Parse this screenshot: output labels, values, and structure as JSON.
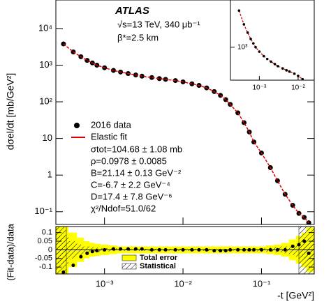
{
  "chart_data": [
    {
      "type": "scatter",
      "title": "ATLAS",
      "subtitle": "√s=13 TeV, 340 μb⁻¹",
      "annotation": "β*=2.5 km",
      "ylabel": "dσel/dt [mb/GeV²]",
      "log_x": true,
      "log_y": true,
      "xlim": [
        0.00024,
        0.47
      ],
      "ylim": [
        0.045,
        60000
      ],
      "yticks": [
        {
          "value": 0.1,
          "label": "10⁻¹"
        },
        {
          "value": 1,
          "label": "1"
        },
        {
          "value": 10,
          "label": "10"
        },
        {
          "value": 100,
          "label": "10²"
        },
        {
          "value": 1000,
          "label": "10³"
        },
        {
          "value": 10000,
          "label": "10⁴"
        }
      ],
      "x": [
        0.0003,
        0.0004,
        0.0005,
        0.0006,
        0.0007,
        0.0008,
        0.001,
        0.0013,
        0.0016,
        0.002,
        0.0025,
        0.003,
        0.004,
        0.005,
        0.006,
        0.008,
        0.01,
        0.013,
        0.016,
        0.02,
        0.025,
        0.03,
        0.035,
        0.04,
        0.05,
        0.06,
        0.07,
        0.08,
        0.1,
        0.13,
        0.16,
        0.2,
        0.25,
        0.3,
        0.35,
        0.4
      ],
      "series": [
        {
          "name": "2016 data",
          "color": "#000000",
          "values": [
            3800,
            2300,
            1700,
            1350,
            1150,
            1000,
            850,
            720,
            650,
            590,
            540,
            500,
            460,
            430,
            410,
            380,
            350,
            310,
            280,
            240,
            190,
            150,
            115,
            85,
            50,
            27,
            15,
            8,
            4,
            1.6,
            0.7,
            0.3,
            0.15,
            0.09,
            0.07,
            0.05
          ]
        },
        {
          "name": "Elastic fit",
          "color": "#e00000",
          "values": [
            3800,
            2300,
            1700,
            1350,
            1150,
            1000,
            850,
            720,
            650,
            590,
            540,
            500,
            460,
            430,
            410,
            380,
            350,
            310,
            280,
            240,
            190,
            150,
            115,
            85,
            50,
            27,
            15,
            8,
            4,
            1.6,
            0.7,
            0.3,
            0.15,
            0.09,
            0.07,
            0.05
          ]
        }
      ],
      "fit_parameters": [
        "σtot=104.68 ± 1.08 mb",
        "ρ=0.0978 ± 0.0085",
        "B=21.14 ± 0.13 GeV⁻²",
        "C=-6.7 ± 2.2 GeV⁻⁴",
        "D=17.4 ± 7.8 GeV⁻⁶",
        "χ²/Ndof=51.0/62"
      ]
    },
    {
      "type": "inset",
      "log_x": true,
      "log_y": true,
      "xlim": [
        0.00018,
        0.026
      ],
      "ylim": [
        300,
        5600
      ],
      "xticks": [
        {
          "value": 0.001,
          "label": "10⁻³"
        },
        {
          "value": 0.01,
          "label": "10⁻²"
        }
      ],
      "yticks": [
        {
          "value": 1000,
          "label": "10³"
        }
      ]
    },
    {
      "type": "ratio",
      "ylabel": "(Fit-data)/data",
      "xlabel": "-t [GeV²]",
      "log_x": true,
      "xlim": [
        0.00024,
        0.47
      ],
      "ylim": [
        -0.14,
        0.135
      ],
      "xticks": [
        {
          "value": 0.001,
          "label": "10⁻³"
        },
        {
          "value": 0.01,
          "label": "10⁻²"
        },
        {
          "value": 0.1,
          "label": "10⁻¹"
        }
      ],
      "yticks": [
        -0.1,
        -0.05,
        0,
        0.05,
        0.1
      ],
      "x": [
        0.0003,
        0.0004,
        0.0005,
        0.0006,
        0.0007,
        0.0008,
        0.001,
        0.0013,
        0.0016,
        0.002,
        0.0025,
        0.003,
        0.004,
        0.005,
        0.006,
        0.008,
        0.01,
        0.013,
        0.016,
        0.02,
        0.025,
        0.03,
        0.035,
        0.04,
        0.05,
        0.06,
        0.07,
        0.08,
        0.1,
        0.13,
        0.16,
        0.2,
        0.25,
        0.3,
        0.35,
        0.4
      ],
      "values": [
        -0.13,
        -0.09,
        -0.04,
        -0.02,
        -0.01,
        -0.005,
        0,
        0.005,
        0.005,
        0.005,
        0.005,
        0.005,
        0,
        0,
        0,
        0,
        0,
        0,
        0,
        0,
        -0.005,
        -0.005,
        -0.005,
        0,
        0,
        0,
        0,
        0,
        0,
        0,
        0,
        0,
        0.02,
        0.03,
        0.05,
        -0.02
      ],
      "bands": [
        {
          "name": "Total error",
          "color": "#ffff00",
          "values": [
            0.15,
            0.1,
            0.07,
            0.05,
            0.04,
            0.035,
            0.03,
            0.025,
            0.02,
            0.02,
            0.02,
            0.02,
            0.02,
            0.02,
            0.02,
            0.02,
            0.02,
            0.02,
            0.02,
            0.02,
            0.02,
            0.02,
            0.02,
            0.02,
            0.02,
            0.02,
            0.02,
            0.02,
            0.02,
            0.025,
            0.03,
            0.04,
            0.06,
            0.08,
            0.1,
            0.13
          ]
        },
        {
          "name": "Statistical",
          "color": "#000000",
          "values": [
            0.08,
            0.05,
            0.03,
            0.02,
            0.015,
            0.012,
            0.01,
            0.008,
            0.007,
            0.006,
            0.006,
            0.006,
            0.006,
            0.006,
            0.006,
            0.006,
            0.006,
            0.006,
            0.006,
            0.006,
            0.006,
            0.006,
            0.006,
            0.006,
            0.006,
            0.007,
            0.008,
            0.009,
            0.01,
            0.012,
            0.015,
            0.02,
            0.03,
            0.04,
            0.05,
            0.07
          ]
        }
      ]
    }
  ]
}
